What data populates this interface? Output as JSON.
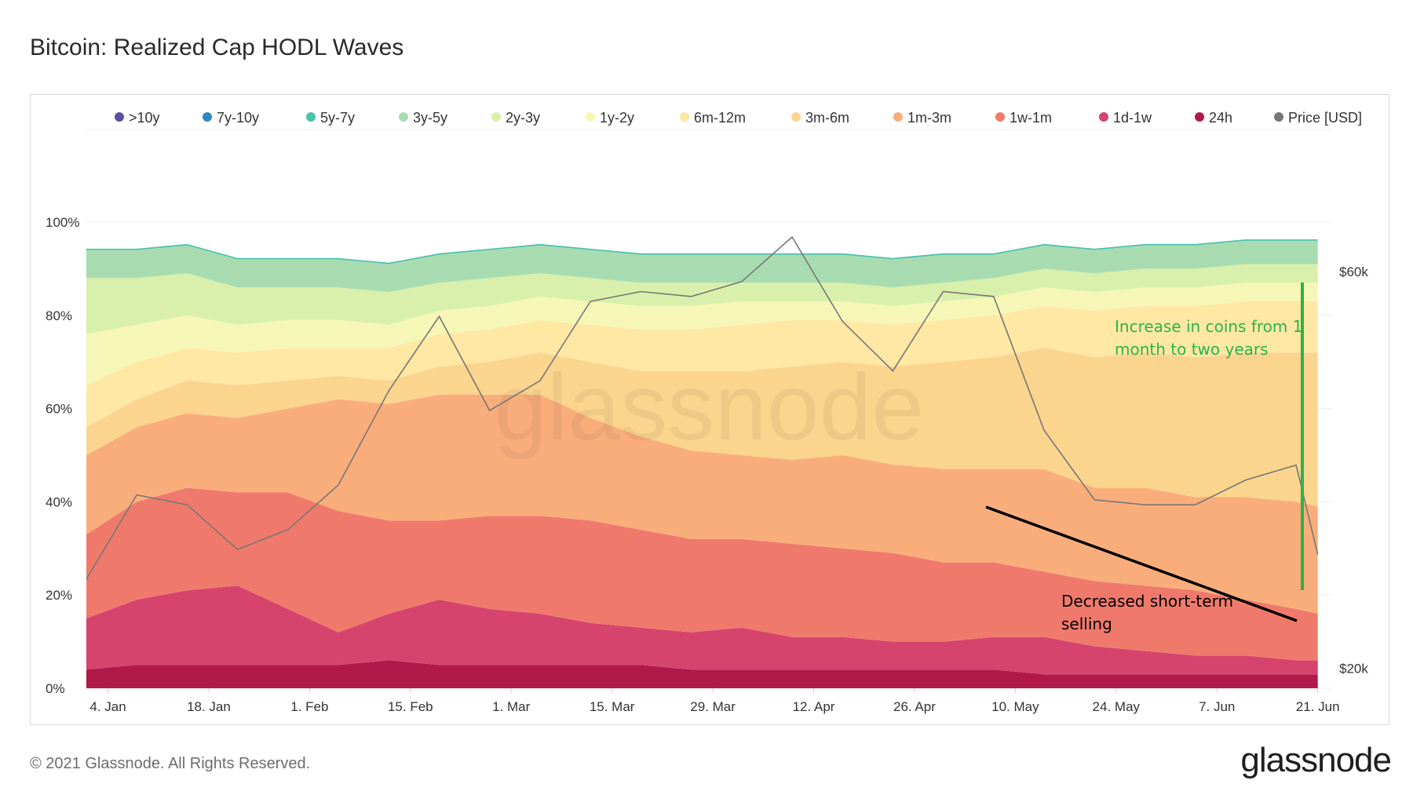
{
  "header": {
    "title": "Bitcoin: Realized Cap HODL Waves"
  },
  "footer": {
    "copyright": "© 2021 Glassnode. All Rights Reserved.",
    "brand": "glassnode"
  },
  "watermark": "glassnode",
  "annotations": {
    "green": "Increase in coins from 1 month to two years",
    "black": "Decreased short-term selling"
  },
  "chart_data": {
    "type": "area",
    "title": "Bitcoin: Realized Cap HODL Waves",
    "stacked": true,
    "legend_position": "top",
    "grid": true,
    "x": [
      "2021-01-01",
      "2021-01-08",
      "2021-01-15",
      "2021-01-22",
      "2021-01-29",
      "2021-02-05",
      "2021-02-12",
      "2021-02-19",
      "2021-02-26",
      "2021-03-05",
      "2021-03-12",
      "2021-03-19",
      "2021-03-26",
      "2021-04-02",
      "2021-04-09",
      "2021-04-16",
      "2021-04-23",
      "2021-04-30",
      "2021-05-07",
      "2021-05-14",
      "2021-05-21",
      "2021-05-28",
      "2021-06-04",
      "2021-06-11",
      "2021-06-18",
      "2021-06-21"
    ],
    "x_ticks": [
      "4. Jan",
      "18. Jan",
      "1. Feb",
      "15. Feb",
      "1. Mar",
      "15. Mar",
      "29. Mar",
      "12. Apr",
      "26. Apr",
      "10. May",
      "24. May",
      "7. Jun",
      "21. Jun"
    ],
    "y_left_ticks": [
      "0%",
      "20%",
      "40%",
      "60%",
      "80%",
      "100%"
    ],
    "y_left_range": [
      0,
      100
    ],
    "y_right_ticks": [
      "$20k",
      "$60k"
    ],
    "y_right_range": [
      18000,
      65000
    ],
    "series": [
      {
        "name": "24h",
        "color": "#b2194b",
        "values": [
          4,
          5,
          5,
          5,
          5,
          5,
          6,
          5,
          5,
          5,
          5,
          5,
          4,
          4,
          4,
          4,
          4,
          4,
          4,
          3,
          3,
          3,
          3,
          3,
          3,
          3
        ]
      },
      {
        "name": "1d-1w",
        "color": "#d6446e",
        "values": [
          11,
          14,
          16,
          17,
          12,
          7,
          10,
          14,
          12,
          11,
          9,
          8,
          8,
          9,
          7,
          7,
          6,
          6,
          7,
          8,
          6,
          5,
          4,
          4,
          3,
          3
        ]
      },
      {
        "name": "1w-1m",
        "color": "#ef7a6b",
        "values": [
          18,
          21,
          22,
          20,
          25,
          26,
          20,
          17,
          20,
          21,
          22,
          21,
          20,
          19,
          20,
          19,
          19,
          17,
          16,
          14,
          14,
          14,
          14,
          12,
          11,
          10
        ]
      },
      {
        "name": "1m-3m",
        "color": "#f9ad7b",
        "values": [
          17,
          16,
          16,
          16,
          18,
          24,
          25,
          27,
          26,
          26,
          22,
          20,
          19,
          18,
          18,
          20,
          19,
          20,
          20,
          22,
          20,
          21,
          20,
          22,
          23,
          23
        ]
      },
      {
        "name": "3m-6m",
        "color": "#fbd48e",
        "values": [
          6,
          6,
          7,
          7,
          6,
          5,
          5,
          6,
          7,
          9,
          12,
          14,
          17,
          18,
          20,
          20,
          21,
          23,
          24,
          26,
          28,
          29,
          30,
          31,
          32,
          33
        ]
      },
      {
        "name": "6m-12m",
        "color": "#fee8a4",
        "values": [
          9,
          8,
          7,
          7,
          7,
          6,
          7,
          7,
          7,
          7,
          8,
          9,
          9,
          10,
          10,
          9,
          9,
          9,
          9,
          9,
          10,
          10,
          11,
          11,
          11,
          11
        ]
      },
      {
        "name": "1y-2y",
        "color": "#f6f7b7",
        "values": [
          11,
          8,
          7,
          6,
          6,
          6,
          5,
          5,
          5,
          5,
          5,
          5,
          5,
          5,
          4,
          4,
          4,
          4,
          4,
          4,
          4,
          4,
          4,
          4,
          4,
          4
        ]
      },
      {
        "name": "2y-3y",
        "color": "#d8f0ab",
        "values": [
          12,
          10,
          9,
          8,
          7,
          7,
          7,
          6,
          6,
          5,
          5,
          5,
          5,
          4,
          4,
          4,
          4,
          4,
          4,
          4,
          4,
          4,
          4,
          4,
          4,
          4
        ]
      },
      {
        "name": "3y-5y",
        "color": "#a8dcb0",
        "values": [
          6,
          6,
          6,
          6,
          6,
          6,
          6,
          6,
          6,
          6,
          6,
          6,
          6,
          6,
          6,
          6,
          6,
          6,
          5,
          5,
          5,
          5,
          5,
          5,
          5,
          5
        ]
      },
      {
        "name": "5y-7y",
        "color": "#4dc0ae",
        "values": [
          0.3,
          0.3,
          0.3,
          0.3,
          0.3,
          0.3,
          0.3,
          0.3,
          0.3,
          0.3,
          0.3,
          0.3,
          0.3,
          0.3,
          0.3,
          0.3,
          0.3,
          0.3,
          0.3,
          0.3,
          0.3,
          0.3,
          0.3,
          0.3,
          0.3,
          0.3
        ]
      },
      {
        "name": "7y-10y",
        "color": "#3288bd",
        "values": [
          0,
          0,
          0,
          0,
          0,
          0,
          0,
          0,
          0,
          0,
          0,
          0,
          0,
          0,
          0,
          0,
          0,
          0,
          0,
          0,
          0,
          0,
          0,
          0,
          0,
          0
        ]
      },
      {
        "name": ">10y",
        "color": "#5e4fa2",
        "values": [
          0,
          0,
          0,
          0,
          0,
          0,
          0,
          0,
          0,
          0,
          0,
          0,
          0,
          0,
          0,
          0,
          0,
          0,
          0,
          0,
          0,
          0,
          0,
          0,
          0,
          0
        ]
      }
    ],
    "price_series": {
      "name": "Price [USD]",
      "color": "#777777",
      "values": [
        29000,
        37500,
        36500,
        32000,
        34000,
        38500,
        48000,
        55500,
        46000,
        49000,
        57000,
        58000,
        57500,
        59000,
        63500,
        55000,
        50000,
        58000,
        57500,
        44000,
        37000,
        36500,
        36500,
        39000,
        40500,
        31500
      ]
    }
  },
  "legend_order": [
    ">10y",
    "7y-10y",
    "5y-7y",
    "3y-5y",
    "2y-3y",
    "1y-2y",
    "6m-12m",
    "3m-6m",
    "1m-3m",
    "1w-1m",
    "1d-1w",
    "24h",
    "Price [USD]"
  ],
  "legend_colors": [
    "#5e4fa2",
    "#3288bd",
    "#4dc0ae",
    "#a8dcb0",
    "#d8f0ab",
    "#f6f7b7",
    "#fee8a4",
    "#fbd48e",
    "#f9ad7b",
    "#ef7a6b",
    "#d6446e",
    "#b2194b",
    "#777777"
  ]
}
